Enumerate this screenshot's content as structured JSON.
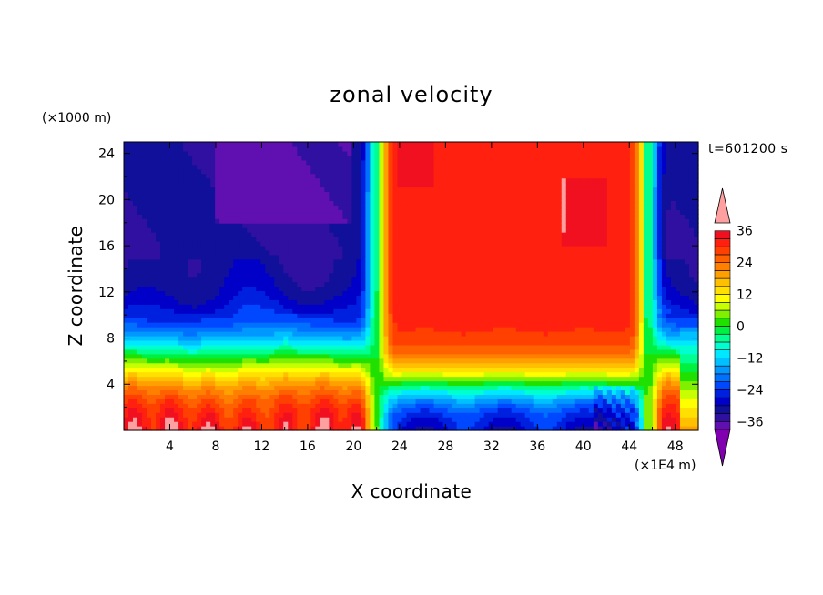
{
  "chart_data": {
    "type": "heatmap",
    "title": "zonal velocity",
    "xlabel": "X coordinate",
    "ylabel": "Z coordinate",
    "x_unit": "(×1E4 m)",
    "y_unit": "(×1000 m)",
    "time_label": "t=601200 s",
    "xlim": [
      0,
      50
    ],
    "ylim": [
      0,
      25
    ],
    "x_ticks": [
      4,
      8,
      12,
      16,
      20,
      24,
      28,
      32,
      36,
      40,
      44,
      48
    ],
    "y_ticks": [
      4,
      8,
      12,
      16,
      20,
      24
    ],
    "colorbar": {
      "levels": [
        -42,
        -39,
        -36,
        -33,
        -30,
        -27,
        -24,
        -21,
        -18,
        -15,
        -12,
        -9,
        -6,
        -3,
        0,
        3,
        6,
        9,
        12,
        15,
        18,
        21,
        24,
        27,
        30,
        33,
        36,
        39,
        42
      ],
      "tick_values": [
        -36,
        -24,
        -12,
        0,
        12,
        24,
        36
      ],
      "tick_labels": [
        "−36",
        "−24",
        "−12",
        "0",
        "12",
        "24",
        "36"
      ],
      "colors": [
        "#8000b0",
        "#6010b0",
        "#3010a0",
        "#10109a",
        "#0000c8",
        "#0020e0",
        "#0048ff",
        "#0070ff",
        "#0098ff",
        "#00c0ff",
        "#00e8ff",
        "#00ffd0",
        "#00ff90",
        "#00f040",
        "#20e000",
        "#80f000",
        "#c8ff00",
        "#ffff00",
        "#ffe000",
        "#ffc000",
        "#ffa000",
        "#ff8000",
        "#ff6000",
        "#ff4000",
        "#ff2010",
        "#f01020",
        "#ffa0a0"
      ],
      "extend": "both"
    },
    "grid": false
  }
}
